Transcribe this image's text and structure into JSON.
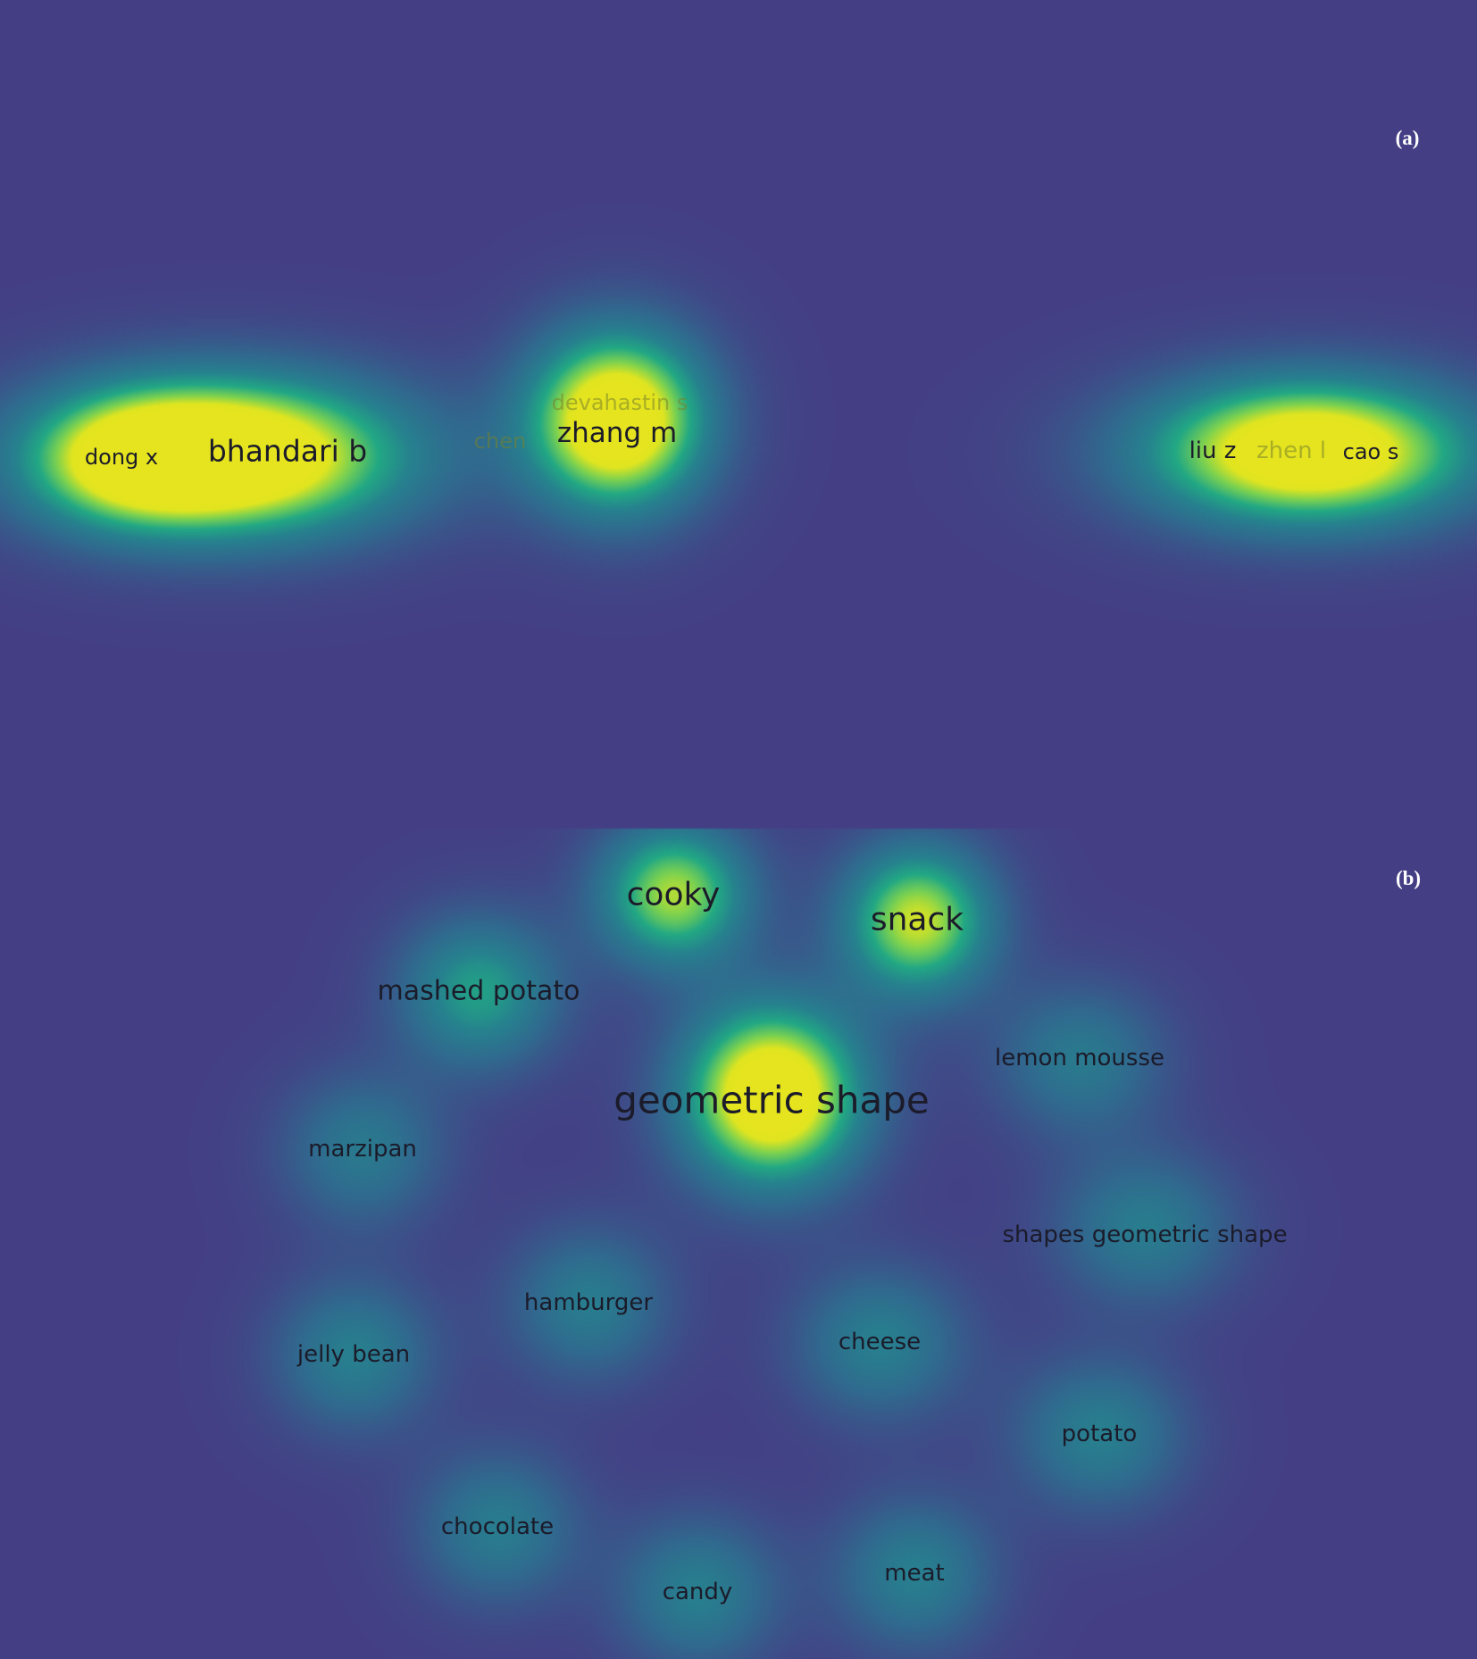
{
  "panels": [
    {
      "label": "(a)",
      "terms": [
        {
          "text": "dong x"
        },
        {
          "text": "bhandari b"
        },
        {
          "text": "devahastin s"
        },
        {
          "text": "chen"
        },
        {
          "text": "zhang m"
        },
        {
          "text": "zhen l"
        },
        {
          "text": "liu z"
        },
        {
          "text": "cao s"
        }
      ]
    },
    {
      "label": "(b)",
      "terms": [
        {
          "text": "cooky"
        },
        {
          "text": "snack"
        },
        {
          "text": "mashed potato"
        },
        {
          "text": "geometric shape"
        },
        {
          "text": "lemon mousse"
        },
        {
          "text": "marzipan"
        },
        {
          "text": "shapes geometric shape"
        },
        {
          "text": "hamburger"
        },
        {
          "text": "jelly bean"
        },
        {
          "text": "cheese"
        },
        {
          "text": "potato"
        },
        {
          "text": "chocolate"
        },
        {
          "text": "candy"
        },
        {
          "text": "meat"
        }
      ]
    }
  ],
  "colors": {
    "background": "#443f85",
    "low": "#2a788e",
    "mid": "#22a884",
    "high": "#e0e520"
  }
}
